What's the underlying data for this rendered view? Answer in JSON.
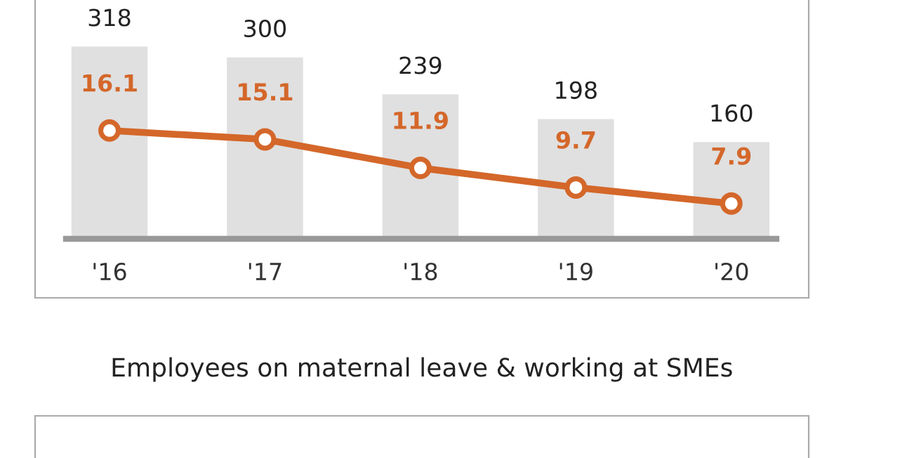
{
  "chart_data": [
    {
      "type": "bar",
      "categories": [
        "'16",
        "'17",
        "'18",
        "'19",
        "'20"
      ],
      "data_labels": true,
      "grid": false,
      "legend": false,
      "series": [
        {
          "type": "bar",
          "color": "#e0e0e0",
          "values": [
            318,
            300,
            239,
            198,
            160
          ]
        },
        {
          "type": "line",
          "axis": "y2",
          "color": "#d4672a",
          "marker": "circle",
          "line_style": "solid",
          "values": [
            16.1,
            15.1,
            11.9,
            9.7,
            7.9
          ]
        }
      ]
    },
    {
      "type": "other",
      "title": "Employees on maternal leave & working at SMEs"
    }
  ]
}
